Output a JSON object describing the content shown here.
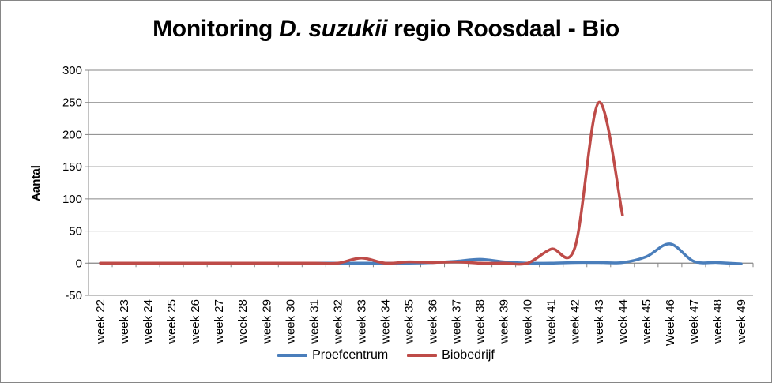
{
  "chart_data": {
    "type": "line",
    "title": {
      "pre": "Monitoring ",
      "italic": "D. suzukii",
      "post": " regio Roosdaal - Bio"
    },
    "ylabel": "Aantal",
    "xlabel": "",
    "ylim": [
      -50,
      300
    ],
    "yticks": [
      -50,
      0,
      50,
      100,
      150,
      200,
      250,
      300
    ],
    "grid": "horizontal",
    "legend_position": "bottom",
    "categories": [
      "week 22",
      "week 23",
      "week 24",
      "week 25",
      "week 26",
      "week 27",
      "week 28",
      "week 29",
      "week 30",
      "week 31",
      "week 32",
      "week 33",
      "week 34",
      "week 35",
      "week 36",
      "week 37",
      "week 38",
      "week 39",
      "week 40",
      "week 41",
      "week 42",
      "week 43",
      "week 44",
      "week 45",
      "Week 46",
      "week 47",
      "week 48",
      "week 49"
    ],
    "series": [
      {
        "name": "Proefcentrum",
        "color": "#4A7EBB",
        "values": [
          0,
          0,
          0,
          0,
          0,
          0,
          0,
          0,
          0,
          0,
          0,
          0,
          0,
          0,
          1,
          3,
          6,
          2,
          0,
          0,
          1,
          1,
          1,
          10,
          30,
          3,
          1,
          -1
        ]
      },
      {
        "name": "Biobedrijf",
        "color": "#BE4B48",
        "values": [
          0,
          0,
          0,
          0,
          0,
          0,
          0,
          0,
          0,
          0,
          0,
          8,
          0,
          2,
          1,
          2,
          0,
          0,
          0,
          22,
          25,
          250,
          75,
          null,
          null,
          null,
          null,
          null
        ]
      }
    ]
  }
}
